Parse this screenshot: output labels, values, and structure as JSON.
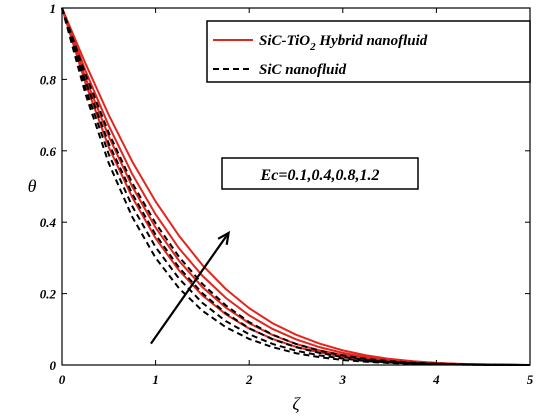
{
  "chart_data": {
    "type": "line",
    "xlabel": "ζ",
    "ylabel": "θ",
    "xlim": [
      0,
      5
    ],
    "ylim": [
      0,
      1
    ],
    "xticks": [
      "0",
      "1",
      "2",
      "3",
      "4",
      "5"
    ],
    "yticks": [
      "0",
      "0.2",
      "0.4",
      "0.6",
      "0.8",
      "1"
    ],
    "grid": false,
    "legend_position": "top-right",
    "legend": [
      {
        "label_main": "SiC-TiO",
        "label_sub": "2",
        "label_tail": " Hybrid nanofluid",
        "color": "#e3261d",
        "dash": "solid"
      },
      {
        "label_main": "SiC nanofluid",
        "label_sub": "",
        "label_tail": "",
        "color": "#000000",
        "dash": "dashed"
      }
    ],
    "annotation": "Ec=0.1,0.4,0.8,1.2",
    "arrow": {
      "from": [
        0.95,
        0.06
      ],
      "to": [
        1.78,
        0.37
      ],
      "direction": "increasing Ec"
    },
    "x": [
      0,
      0.25,
      0.5,
      0.75,
      1,
      1.25,
      1.5,
      1.75,
      2,
      2.25,
      2.5,
      2.75,
      3,
      3.25,
      3.5,
      3.75,
      4,
      4.25,
      4.5,
      4.75,
      5
    ],
    "series": [
      {
        "group": "hybrid",
        "Ec": "0.1",
        "color": "#e3261d",
        "dash": "solid",
        "values": [
          1,
          0.79,
          0.61,
          0.47,
          0.355,
          0.265,
          0.195,
          0.142,
          0.102,
          0.073,
          0.051,
          0.035,
          0.023,
          0.015,
          0.009,
          0.0055,
          0.0032,
          0.0017,
          0.0008,
          0.0003,
          0
        ]
      },
      {
        "group": "hybrid",
        "Ec": "0.4",
        "color": "#e3261d",
        "dash": "solid",
        "values": [
          1,
          0.805,
          0.64,
          0.5,
          0.385,
          0.292,
          0.218,
          0.161,
          0.117,
          0.084,
          0.059,
          0.041,
          0.028,
          0.018,
          0.011,
          0.0067,
          0.0038,
          0.002,
          0.001,
          0.0004,
          0
        ]
      },
      {
        "group": "hybrid",
        "Ec": "0.8",
        "color": "#e3261d",
        "dash": "solid",
        "values": [
          1,
          0.825,
          0.67,
          0.535,
          0.422,
          0.327,
          0.25,
          0.188,
          0.139,
          0.101,
          0.072,
          0.05,
          0.034,
          0.022,
          0.014,
          0.0085,
          0.0049,
          0.0026,
          0.0013,
          0.0005,
          0
        ]
      },
      {
        "group": "hybrid",
        "Ec": "1.2",
        "color": "#e3261d",
        "dash": "solid",
        "values": [
          1,
          0.845,
          0.7,
          0.57,
          0.458,
          0.362,
          0.28,
          0.213,
          0.159,
          0.117,
          0.085,
          0.06,
          0.041,
          0.027,
          0.017,
          0.0105,
          0.006,
          0.0032,
          0.0016,
          0.0006,
          0
        ]
      },
      {
        "group": "mono",
        "Ec": "0.1",
        "color": "#000000",
        "dash": "dashed",
        "values": [
          1,
          0.76,
          0.565,
          0.415,
          0.3,
          0.215,
          0.152,
          0.106,
          0.073,
          0.05,
          0.033,
          0.022,
          0.014,
          0.009,
          0.0055,
          0.0033,
          0.0019,
          0.001,
          0.0005,
          0.0002,
          0
        ]
      },
      {
        "group": "mono",
        "Ec": "0.4",
        "color": "#000000",
        "dash": "dashed",
        "values": [
          1,
          0.775,
          0.59,
          0.445,
          0.33,
          0.242,
          0.174,
          0.123,
          0.086,
          0.059,
          0.04,
          0.027,
          0.018,
          0.011,
          0.007,
          0.0042,
          0.0024,
          0.0013,
          0.0006,
          0.0002,
          0
        ]
      },
      {
        "group": "mono",
        "Ec": "0.8",
        "color": "#000000",
        "dash": "dashed",
        "values": [
          1,
          0.795,
          0.62,
          0.48,
          0.365,
          0.273,
          0.201,
          0.145,
          0.103,
          0.072,
          0.05,
          0.034,
          0.022,
          0.014,
          0.0088,
          0.0053,
          0.003,
          0.0016,
          0.0008,
          0.0003,
          0
        ]
      },
      {
        "group": "mono",
        "Ec": "1.2",
        "color": "#000000",
        "dash": "dashed",
        "values": [
          1,
          0.815,
          0.65,
          0.51,
          0.397,
          0.303,
          0.227,
          0.167,
          0.12,
          0.085,
          0.059,
          0.04,
          0.027,
          0.017,
          0.011,
          0.0065,
          0.0037,
          0.002,
          0.001,
          0.0004,
          0
        ]
      }
    ]
  }
}
